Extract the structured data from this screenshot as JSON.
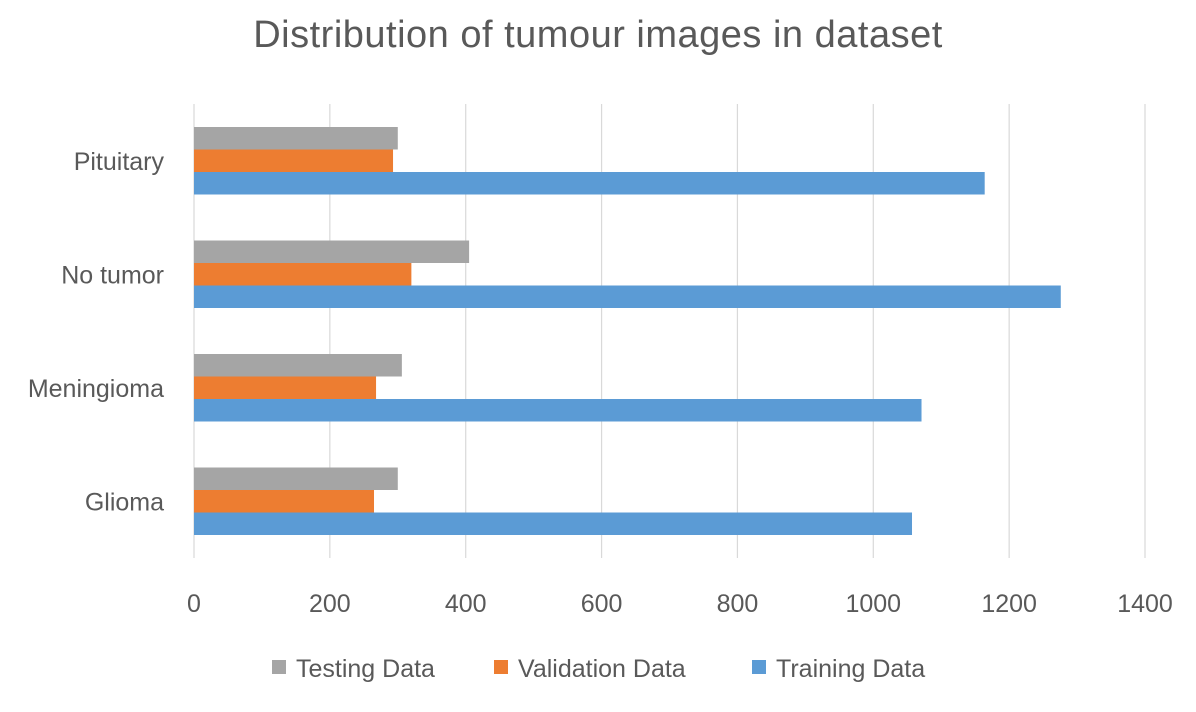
{
  "chart_data": {
    "type": "bar",
    "orientation": "horizontal",
    "title": "Distribution of tumour images in dataset",
    "categories": [
      "Glioma",
      "Meningioma",
      "No tumor",
      "Pituitary"
    ],
    "series": [
      {
        "name": "Testing Data",
        "color": "#a5a5a5",
        "values": [
          300,
          306,
          405,
          300
        ]
      },
      {
        "name": "Validation Data",
        "color": "#ed7d31",
        "values": [
          265,
          268,
          320,
          293
        ]
      },
      {
        "name": "Training Data",
        "color": "#5b9bd5",
        "values": [
          1057,
          1071,
          1276,
          1164
        ]
      }
    ],
    "xlim": [
      0,
      1400
    ],
    "xticks": [
      0,
      200,
      400,
      600,
      800,
      1000,
      1200,
      1400
    ],
    "grid": true,
    "legend_position": "bottom"
  }
}
